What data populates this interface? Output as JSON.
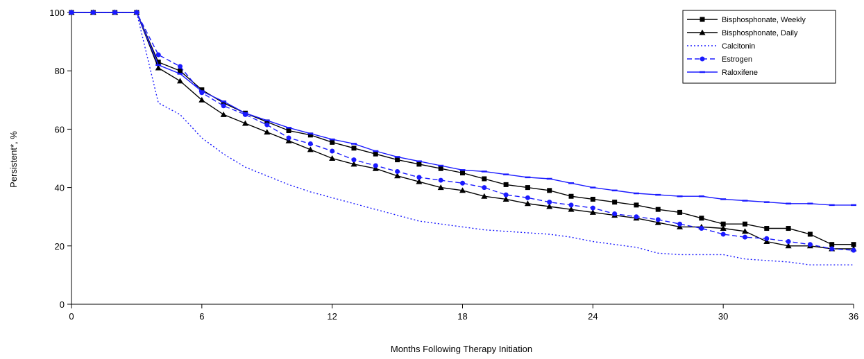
{
  "chart_data": {
    "type": "line",
    "xlabel": "Months Following Therapy Initiation",
    "ylabel": "Persistent*, %",
    "xlim": [
      0,
      36
    ],
    "ylim": [
      0,
      100
    ],
    "x_ticks": [
      0,
      6,
      12,
      18,
      24,
      30,
      36
    ],
    "y_ticks": [
      0,
      20,
      40,
      60,
      80,
      100
    ],
    "grid": false,
    "legend_position": "top-right",
    "series": [
      {
        "name": "Bisphosphonate, Weekly",
        "color": "#000000",
        "line": "solid",
        "marker": "square",
        "x": [
          0,
          1,
          2,
          3,
          4,
          5,
          6,
          7,
          8,
          9,
          10,
          11,
          12,
          13,
          14,
          15,
          16,
          17,
          18,
          19,
          20,
          21,
          22,
          23,
          24,
          25,
          26,
          27,
          28,
          29,
          30,
          31,
          32,
          33,
          34,
          35,
          36
        ],
        "y": [
          100,
          100,
          100,
          100,
          83,
          80,
          73.5,
          69,
          65.5,
          62.5,
          59.5,
          58,
          55.5,
          53.5,
          51.5,
          49.5,
          48,
          46.5,
          45,
          43,
          41,
          40,
          39,
          37,
          36,
          35,
          34,
          32.5,
          31.5,
          29.5,
          27.5,
          27.5,
          26,
          26,
          24,
          20.5,
          20.5
        ]
      },
      {
        "name": "Bisphosphonate, Daily",
        "color": "#000000",
        "line": "solid",
        "marker": "triangle",
        "x": [
          0,
          1,
          2,
          3,
          4,
          5,
          6,
          7,
          8,
          9,
          10,
          11,
          12,
          13,
          14,
          15,
          16,
          17,
          18,
          19,
          20,
          21,
          22,
          23,
          24,
          25,
          26,
          27,
          28,
          29,
          30,
          31,
          32,
          33,
          34,
          35,
          36
        ],
        "y": [
          100,
          100,
          100,
          100,
          81,
          76.5,
          70,
          65,
          62,
          59,
          56,
          53,
          50,
          48,
          46.5,
          44,
          42,
          40,
          39,
          37,
          36,
          34.5,
          33.5,
          32.5,
          31.5,
          30.5,
          29.5,
          28,
          26.5,
          26.5,
          26,
          25,
          21.5,
          20,
          20,
          19,
          19
        ]
      },
      {
        "name": "Calcitonin",
        "color": "#1a1aff",
        "line": "dotted",
        "marker": "none",
        "x": [
          0,
          1,
          2,
          3,
          4,
          5,
          6,
          7,
          8,
          9,
          10,
          11,
          12,
          13,
          14,
          15,
          16,
          17,
          18,
          19,
          20,
          21,
          22,
          23,
          24,
          25,
          26,
          27,
          28,
          29,
          30,
          31,
          32,
          33,
          34,
          35,
          36
        ],
        "y": [
          100,
          100,
          100,
          100,
          69,
          65,
          57,
          51.5,
          47,
          44,
          41,
          38.5,
          36.5,
          34.5,
          32.5,
          30.5,
          28.5,
          27.5,
          26.5,
          25.5,
          25,
          24.5,
          24,
          23,
          21.5,
          20.5,
          19.5,
          17.5,
          17,
          17,
          17,
          15.5,
          15,
          14.5,
          13.5,
          13.5,
          13.5
        ]
      },
      {
        "name": "Estrogen",
        "color": "#1a1aff",
        "line": "dashed",
        "marker": "circle",
        "x": [
          0,
          1,
          2,
          3,
          4,
          5,
          6,
          7,
          8,
          9,
          10,
          11,
          12,
          13,
          14,
          15,
          16,
          17,
          18,
          19,
          20,
          21,
          22,
          23,
          24,
          25,
          26,
          27,
          28,
          29,
          30,
          31,
          32,
          33,
          34,
          35,
          36
        ],
        "y": [
          100,
          100,
          100,
          100,
          85.5,
          81.5,
          72.5,
          68,
          65,
          61.5,
          57,
          55,
          52.5,
          49.5,
          47.5,
          45.5,
          43.5,
          42.5,
          41.5,
          40,
          37.5,
          36.5,
          35,
          34,
          33,
          31,
          30,
          29,
          27.5,
          26,
          24,
          23,
          22.5,
          21.5,
          20.5,
          19,
          18.5
        ]
      },
      {
        "name": "Raloxifene",
        "color": "#1a1aff",
        "line": "solid",
        "marker": "dash",
        "x": [
          0,
          1,
          2,
          3,
          4,
          5,
          6,
          7,
          8,
          9,
          10,
          11,
          12,
          13,
          14,
          15,
          16,
          17,
          18,
          19,
          20,
          21,
          22,
          23,
          24,
          25,
          26,
          27,
          28,
          29,
          30,
          31,
          32,
          33,
          34,
          35,
          36
        ],
        "y": [
          100,
          100,
          100,
          100,
          82,
          79,
          73,
          69.5,
          65.5,
          63,
          60.5,
          58.5,
          56.5,
          55,
          52.5,
          50.5,
          49,
          47.5,
          46,
          45.5,
          44.5,
          43.5,
          43,
          41.5,
          40,
          39,
          38,
          37.5,
          37,
          37,
          36,
          35.5,
          35,
          34.5,
          34.5,
          34,
          34
        ]
      }
    ]
  }
}
